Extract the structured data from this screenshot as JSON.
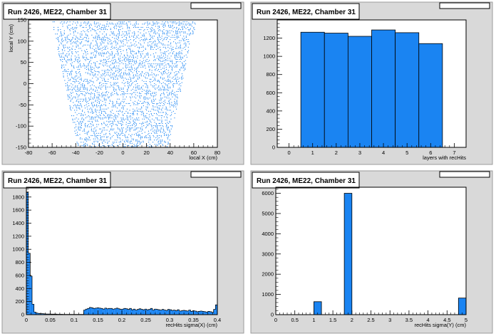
{
  "colors": {
    "fill": "#1a84f2",
    "frame_bg": "#d9d9d9",
    "plot_bg": "#ffffff",
    "axis": "#000000"
  },
  "chart_data": [
    {
      "type": "scatter",
      "title": "Run 2426, ME22, Chamber 31",
      "xlabel": "local X (cm)",
      "ylabel": "local Y (cm)",
      "xlim": [
        -80,
        80
      ],
      "ylim": [
        -150,
        150
      ],
      "xticks": [
        -80,
        -60,
        -40,
        -20,
        0,
        20,
        40,
        60,
        80
      ],
      "yticks": [
        -150,
        -100,
        -50,
        0,
        50,
        100,
        150
      ],
      "point_region": {
        "y_top": 150,
        "y_bottom": -150,
        "x_min_top": -60,
        "x_max_top": 62,
        "x_min_bottom": -38,
        "x_max_bottom": 38
      }
    },
    {
      "type": "bar",
      "title": "Run 2426, ME22, Chamber 31",
      "xlabel": "layers with recHits",
      "ylabel": "",
      "xlim": [
        -0.5,
        7.5
      ],
      "ylim": [
        0,
        1400
      ],
      "xticks": [
        0,
        1,
        2,
        3,
        4,
        5,
        6,
        7
      ],
      "yticks": [
        0,
        200,
        400,
        600,
        800,
        1000,
        1200
      ],
      "bins": [
        {
          "lo": 0.5,
          "hi": 1.5,
          "value": 1265
        },
        {
          "lo": 1.5,
          "hi": 2.5,
          "value": 1255
        },
        {
          "lo": 2.5,
          "hi": 3.5,
          "value": 1220
        },
        {
          "lo": 3.5,
          "hi": 4.5,
          "value": 1290
        },
        {
          "lo": 4.5,
          "hi": 5.5,
          "value": 1260
        },
        {
          "lo": 5.5,
          "hi": 6.5,
          "value": 1140
        }
      ]
    },
    {
      "type": "bar",
      "title": "Run 2426, ME22, Chamber 31",
      "xlabel": "recHits sigma(X) (cm)",
      "ylabel": "",
      "xlim": [
        0,
        0.4
      ],
      "ylim": [
        0,
        1950
      ],
      "xticks": [
        0,
        0.05,
        0.1,
        0.15,
        0.2,
        0.25,
        0.3,
        0.35,
        0.4
      ],
      "yticks": [
        0,
        200,
        400,
        600,
        800,
        1000,
        1200,
        1400,
        1600,
        1800
      ],
      "bin_width": 0.004,
      "values": [
        1870,
        940,
        590,
        160,
        40,
        25,
        20,
        15,
        15,
        12,
        10,
        10,
        10,
        8,
        8,
        8,
        6,
        6,
        6,
        5,
        5,
        5,
        5,
        5,
        5,
        5,
        5,
        5,
        5,
        5,
        70,
        85,
        95,
        110,
        105,
        95,
        100,
        105,
        100,
        95,
        85,
        100,
        90,
        95,
        95,
        85,
        90,
        100,
        90,
        80,
        85,
        95,
        90,
        80,
        95,
        75,
        85,
        70,
        80,
        90,
        80,
        75,
        85,
        75,
        80,
        95,
        70,
        85,
        80,
        75,
        70,
        80,
        70,
        65,
        80,
        75,
        65,
        70,
        60,
        75,
        55,
        60,
        65,
        60,
        55,
        70,
        50,
        60,
        55,
        45,
        50,
        55,
        50,
        45,
        40,
        50,
        45,
        35,
        80,
        150
      ]
    },
    {
      "type": "bar",
      "title": "Run 2426, ME22, Chamber 31",
      "xlabel": "recHits sigma(Y) (cm)",
      "ylabel": "",
      "xlim": [
        0,
        5
      ],
      "ylim": [
        0,
        6300
      ],
      "xticks": [
        0,
        0.5,
        1,
        1.5,
        2,
        2.5,
        3,
        3.5,
        4,
        4.5,
        5
      ],
      "yticks": [
        0,
        1000,
        2000,
        3000,
        4000,
        5000,
        6000
      ],
      "bins": [
        {
          "lo": 1.0,
          "hi": 1.2,
          "value": 640
        },
        {
          "lo": 1.8,
          "hi": 2.0,
          "value": 6000
        },
        {
          "lo": 4.8,
          "hi": 5.0,
          "value": 820
        }
      ]
    }
  ]
}
